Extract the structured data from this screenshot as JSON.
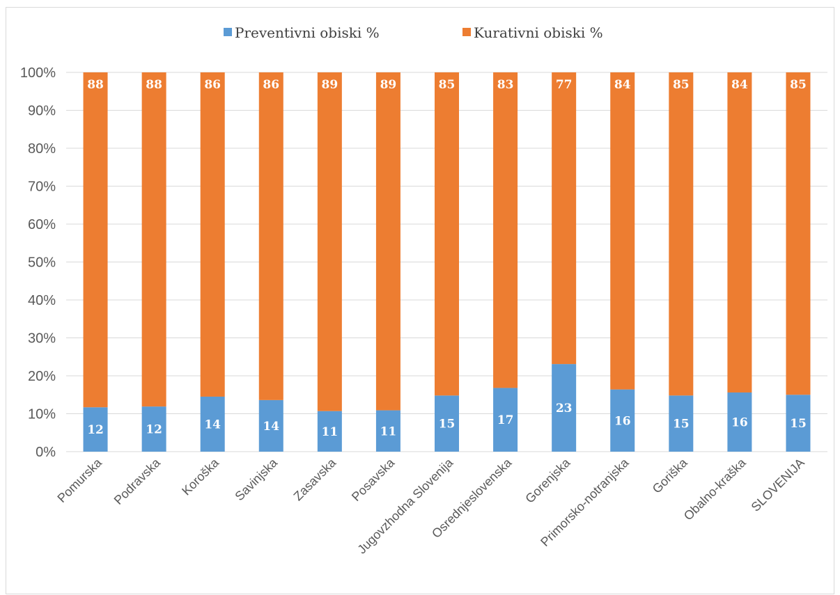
{
  "colors": {
    "preventive": "#5B9BD5",
    "curative": "#ED7D31",
    "grid": "#d9d9d9",
    "axis_text": "#595959"
  },
  "chart_data": {
    "type": "bar",
    "stacked": "percent",
    "title": "",
    "xlabel": "",
    "ylabel": "",
    "ylim": [
      0,
      100
    ],
    "yticks": [
      "0%",
      "10%",
      "20%",
      "30%",
      "40%",
      "50%",
      "60%",
      "70%",
      "80%",
      "90%",
      "100%"
    ],
    "grid": true,
    "legend_position": "top-center",
    "categories": [
      "Pomurska",
      "Podravska",
      "Koroška",
      "Savinjska",
      "Zasavska",
      "Posavska",
      "Jugovzhodna Slovenija",
      "Osrednjeslovenska",
      "Gorenjska",
      "Primorsko-notranjska",
      "Goriška",
      "Obalno-kraška",
      "SLOVENIJA"
    ],
    "series": [
      {
        "name": "Preventivni obiski %",
        "values": [
          11.7,
          11.9,
          14.5,
          13.6,
          10.7,
          10.9,
          14.8,
          16.8,
          23.1,
          16.4,
          14.8,
          15.6,
          15.0
        ],
        "labels": [
          "12",
          "12",
          "14",
          "14",
          "11",
          "11",
          "15",
          "17",
          "23",
          "16",
          "15",
          "16",
          "15"
        ]
      },
      {
        "name": "Kurativni obiski %",
        "values": [
          88.3,
          88.1,
          85.5,
          86.4,
          89.3,
          89.1,
          85.2,
          83.2,
          76.9,
          83.6,
          85.2,
          84.4,
          85.0
        ],
        "labels": [
          "88",
          "88",
          "86",
          "86",
          "89",
          "89",
          "85",
          "83",
          "77",
          "84",
          "85",
          "84",
          "85"
        ]
      }
    ]
  }
}
